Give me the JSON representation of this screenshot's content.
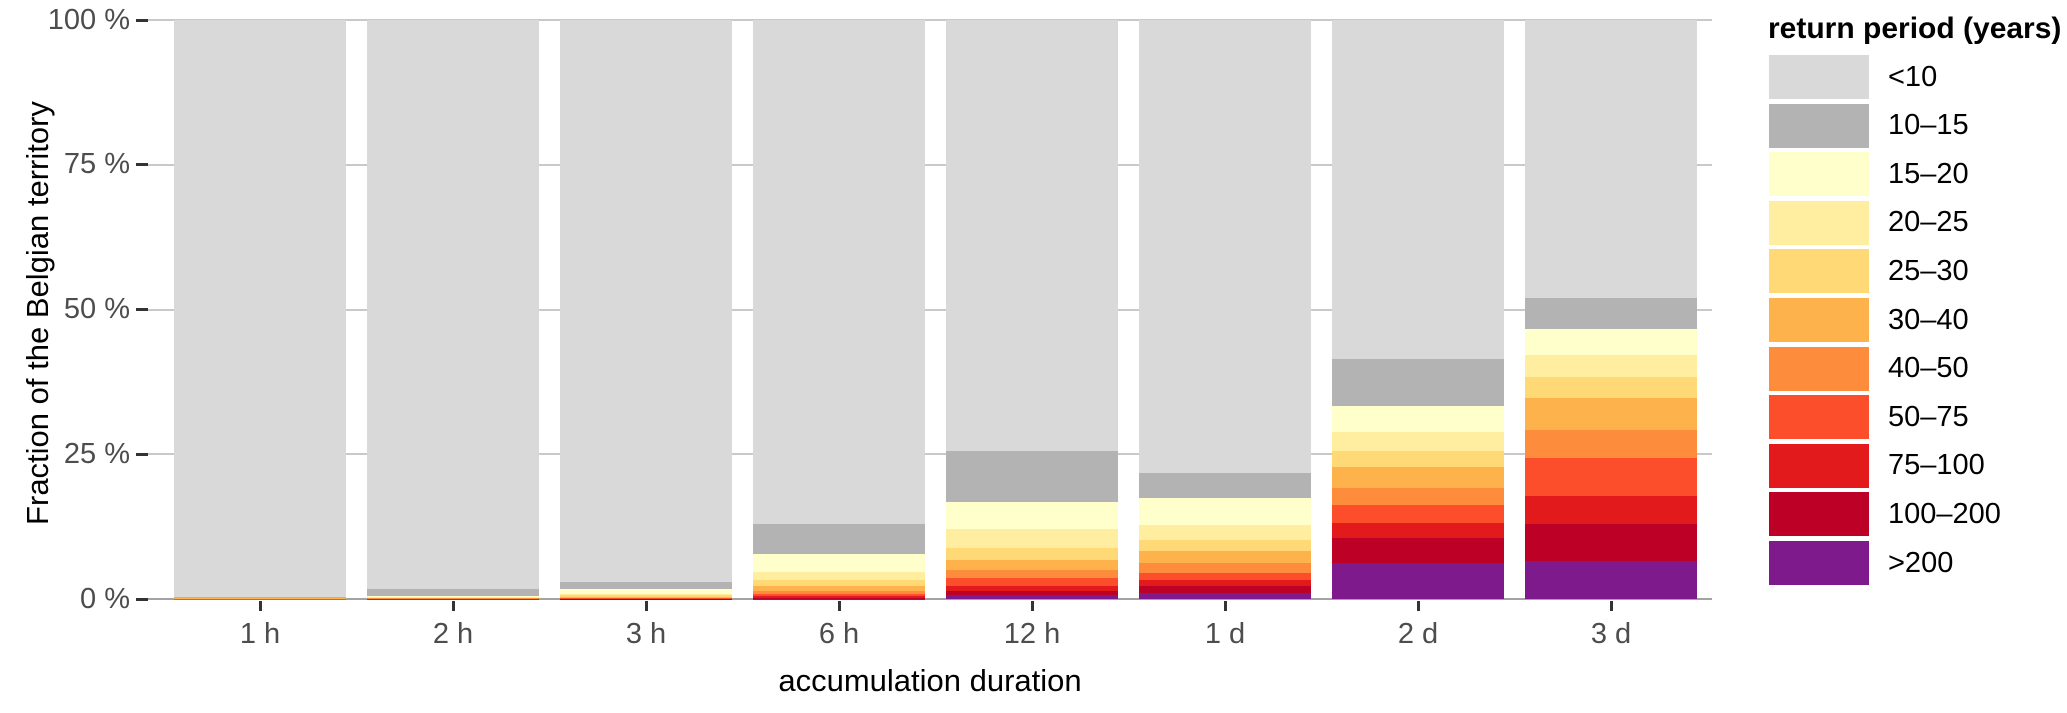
{
  "chart_data": {
    "type": "bar",
    "stacked": true,
    "title": "",
    "xlabel": "accumulation duration",
    "ylabel": "Fraction of the Belgian territory",
    "legend_title": "return period (years)",
    "legend_position": "right",
    "grid": true,
    "ylim": [
      0,
      100
    ],
    "yticks": [
      0,
      25,
      50,
      75,
      100
    ],
    "ytick_labels": [
      "0 %",
      "25 %",
      "50 %",
      "75 %",
      "100 %"
    ],
    "categories": [
      "1 h",
      "2 h",
      "3 h",
      "6 h",
      "12 h",
      "1 d",
      "2 d",
      "3 d"
    ],
    "series": [
      {
        "name": "<10",
        "color": "#d9d9d9",
        "values": [
          99.7,
          98.26,
          97.05,
          87.0,
          74.45,
          78.3,
          58.5,
          48.0
        ]
      },
      {
        "name": "10–15",
        "color": "#b3b3b3",
        "values": [
          0.05,
          1.2,
          1.3,
          5.2,
          8.8,
          4.3,
          8.1,
          5.4
        ]
      },
      {
        "name": "15–20",
        "color": "#ffffcc",
        "values": [
          0.06,
          0.2,
          0.75,
          3.1,
          4.6,
          4.7,
          4.6,
          4.5
        ]
      },
      {
        "name": "20–25",
        "color": "#ffeda0",
        "values": [
          0.05,
          0.1,
          0.3,
          1.4,
          3.3,
          2.5,
          3.3,
          3.7
        ]
      },
      {
        "name": "25–30",
        "color": "#fed976",
        "values": [
          0.04,
          0.08,
          0.2,
          1.0,
          2.1,
          2.0,
          2.7,
          3.7
        ]
      },
      {
        "name": "30–40",
        "color": "#feb24c",
        "values": [
          0.04,
          0.06,
          0.15,
          0.9,
          1.7,
          2.0,
          3.6,
          5.6
        ]
      },
      {
        "name": "40–50",
        "color": "#fd8d3c",
        "values": [
          0.03,
          0.04,
          0.1,
          0.5,
          1.45,
          1.7,
          2.9,
          4.7
        ]
      },
      {
        "name": "50–75",
        "color": "#fc4e2a",
        "values": [
          0.02,
          0.03,
          0.08,
          0.4,
          1.3,
          1.3,
          3.2,
          6.7
        ]
      },
      {
        "name": "75–100",
        "color": "#e31a1c",
        "values": [
          0.01,
          0.02,
          0.05,
          0.3,
          0.85,
          1.0,
          2.5,
          4.8
        ]
      },
      {
        "name": "100–200",
        "color": "#bd0026",
        "values": [
          0.0,
          0.01,
          0.02,
          0.15,
          0.75,
          1.1,
          4.4,
          6.3
        ]
      },
      {
        "name": ">200",
        "color": "#7f1a8d",
        "values": [
          0.0,
          0.0,
          0.0,
          0.05,
          0.7,
          1.1,
          6.2,
          6.6
        ]
      }
    ],
    "theme": {
      "gridline_color": "#c9c9c9",
      "baseline_color": "#a3a3a3",
      "tick_color": "#333333",
      "tick_label_color": "#4d4d4d",
      "axis_title_color": "#000000",
      "background": "#ffffff"
    }
  }
}
